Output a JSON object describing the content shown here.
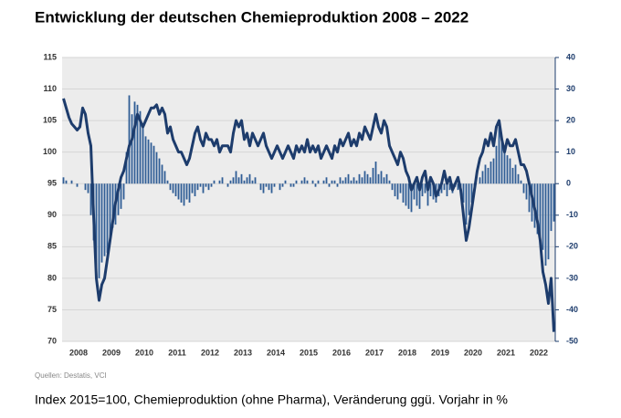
{
  "chart_data": {
    "type": "combo",
    "title": "Entwicklung der deutschen Chemieproduktion 2008 – 2022",
    "source": "Quellen: Destatis, VCI",
    "caption": "Index 2015=100, Chemieproduktion (ohne Pharma), Veränderung ggü. Vorjahr in %",
    "categories": [
      null,
      null,
      null,
      null,
      null,
      null,
      "2008",
      null,
      null,
      null,
      null,
      null,
      null,
      null,
      null,
      null,
      null,
      null,
      "2009",
      null,
      null,
      null,
      null,
      null,
      null,
      null,
      null,
      null,
      null,
      null,
      "2010",
      null,
      null,
      null,
      null,
      null,
      null,
      null,
      null,
      null,
      null,
      null,
      "2011",
      null,
      null,
      null,
      null,
      null,
      null,
      null,
      null,
      null,
      null,
      null,
      "2012",
      null,
      null,
      null,
      null,
      null,
      null,
      null,
      null,
      null,
      null,
      null,
      "2013",
      null,
      null,
      null,
      null,
      null,
      null,
      null,
      null,
      null,
      null,
      null,
      "2014",
      null,
      null,
      null,
      null,
      null,
      null,
      null,
      null,
      null,
      null,
      null,
      "2015",
      null,
      null,
      null,
      null,
      null,
      null,
      null,
      null,
      null,
      null,
      null,
      "2016",
      null,
      null,
      null,
      null,
      null,
      null,
      null,
      null,
      null,
      null,
      null,
      "2017",
      null,
      null,
      null,
      null,
      null,
      null,
      null,
      null,
      null,
      null,
      null,
      "2018",
      null,
      null,
      null,
      null,
      null,
      null,
      null,
      null,
      null,
      null,
      null,
      "2019",
      null,
      null,
      null,
      null,
      null,
      null,
      null,
      null,
      null,
      null,
      null,
      "2020",
      null,
      null,
      null,
      null,
      null,
      null,
      null,
      null,
      null,
      null,
      null,
      "2021",
      null,
      null,
      null,
      null,
      null,
      null,
      null,
      null,
      null,
      null,
      null,
      "2022",
      null,
      null,
      null,
      null,
      null
    ],
    "series": [
      {
        "type": "bar",
        "color": "#2f5d95",
        "axis": "y2",
        "values": [
          2,
          1,
          0,
          1,
          0,
          -1,
          0,
          0,
          -2,
          -3,
          -10,
          -18,
          -27,
          -30,
          -25,
          -23,
          -22,
          -18,
          -14,
          -13,
          -10,
          -8,
          -5,
          10,
          28,
          22,
          26,
          25,
          23,
          18,
          15,
          14,
          13,
          12,
          10,
          8,
          6,
          4,
          1,
          -2,
          -3,
          -4,
          -5,
          -6,
          -7,
          -5,
          -6,
          -3,
          -4,
          -2,
          -1,
          -3,
          -1,
          -2,
          -1,
          1,
          0,
          1,
          2,
          0,
          -1,
          1,
          2,
          4,
          2,
          3,
          1,
          2,
          3,
          1,
          2,
          0,
          -2,
          -3,
          -1,
          -2,
          -3,
          -1,
          0,
          -2,
          -1,
          1,
          0,
          -1,
          -1,
          1,
          0,
          1,
          2,
          1,
          0,
          1,
          -1,
          1,
          0,
          1,
          2,
          -1,
          1,
          1,
          -1,
          2,
          1,
          2,
          3,
          1,
          2,
          1,
          3,
          2,
          4,
          3,
          2,
          5,
          7,
          3,
          4,
          2,
          3,
          1,
          -2,
          -4,
          -5,
          -3,
          -6,
          -7,
          -8,
          -9,
          -5,
          -7,
          -8,
          -4,
          -3,
          -7,
          -4,
          -5,
          -6,
          -4,
          -3,
          -2,
          -4,
          -2,
          -3,
          -1,
          -2,
          -3,
          -6,
          -13,
          -10,
          -6,
          -2,
          0,
          2,
          4,
          6,
          5,
          7,
          8,
          12,
          18,
          14,
          11,
          9,
          8,
          5,
          6,
          3,
          1,
          -3,
          -5,
          -9,
          -12,
          -14,
          -16,
          -17,
          -21,
          -26,
          -24,
          -15,
          -12
        ]
      },
      {
        "type": "line",
        "color": "#1d3c6c",
        "values": [
          108.5,
          107,
          105.5,
          104.5,
          104,
          103.5,
          104,
          107,
          106,
          103,
          101,
          90,
          80,
          76.5,
          79,
          80,
          83,
          86,
          89,
          92,
          94,
          96,
          97,
          99,
          101,
          102,
          104,
          106,
          105,
          104,
          105,
          106,
          107,
          107,
          107.5,
          106,
          107,
          106,
          103,
          104,
          102,
          101,
          100,
          100,
          99,
          98,
          99,
          101,
          103,
          104,
          102,
          101,
          103,
          102,
          102,
          101,
          102,
          100,
          101,
          101,
          101,
          100,
          103,
          105,
          104,
          105,
          102,
          103,
          101,
          103,
          102,
          101,
          102,
          103,
          101,
          100,
          99,
          100,
          101,
          100,
          99,
          100,
          101,
          100,
          99,
          101,
          100,
          101,
          100,
          102,
          100,
          101,
          100,
          101,
          99,
          100,
          101,
          100,
          99,
          101,
          100,
          102,
          101,
          102,
          103,
          101,
          102,
          101,
          103,
          102,
          104,
          103,
          102,
          104,
          106,
          104,
          103,
          105,
          104,
          101,
          100,
          99,
          98,
          100,
          99,
          97,
          96,
          94,
          95,
          96,
          94,
          96,
          97,
          94,
          96,
          95,
          93,
          94,
          95,
          97,
          95,
          96,
          94,
          95,
          96,
          94,
          90,
          86,
          88,
          91,
          94,
          97,
          99,
          100,
          102,
          101,
          103,
          101,
          104,
          105,
          102,
          100,
          102,
          101,
          101,
          102,
          100,
          98,
          98,
          97,
          95,
          93,
          91,
          89,
          86,
          81,
          79,
          76,
          80,
          71.5
        ]
      }
    ],
    "ylim": [
      70,
      115
    ],
    "yticks": [
      70,
      75,
      80,
      85,
      90,
      95,
      100,
      105,
      110,
      115
    ],
    "y2lim": [
      -50,
      40
    ],
    "y2ticks": [
      -50,
      -40,
      -30,
      -20,
      -10,
      0,
      10,
      20,
      30,
      40
    ],
    "grid": true
  }
}
